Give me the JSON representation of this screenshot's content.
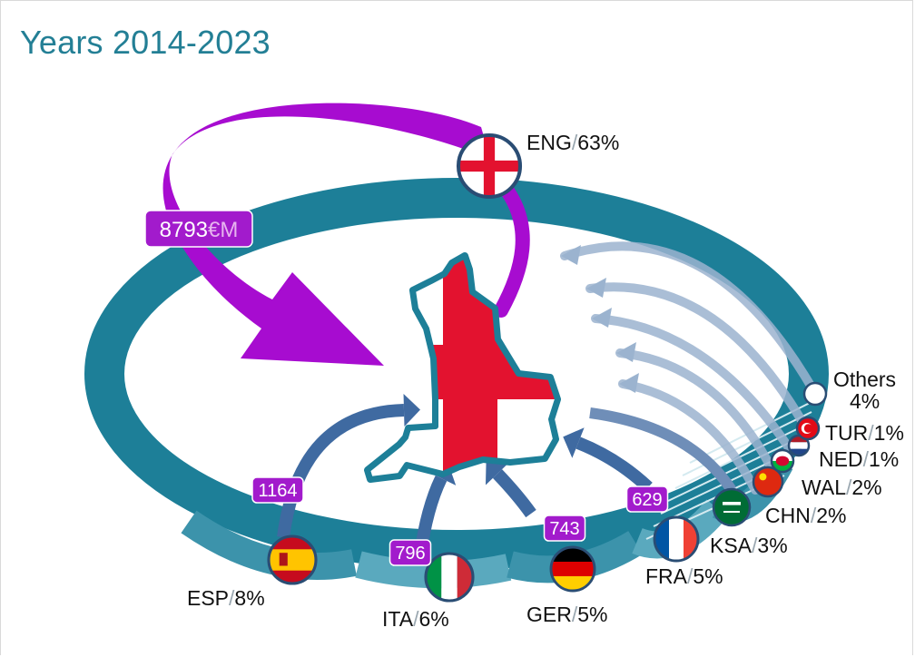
{
  "title": "Years 2014-2023",
  "chart_data": {
    "type": "flow",
    "destination": {
      "code": "ENG",
      "share": "63%",
      "value": 8793,
      "value_label": "8793",
      "unit": "€M"
    },
    "origins": [
      {
        "code": "ESP",
        "share": "8%",
        "value": 1164,
        "value_label": "1164"
      },
      {
        "code": "ITA",
        "share": "6%",
        "value": 796,
        "value_label": "796"
      },
      {
        "code": "GER",
        "share": "5%",
        "value": 743,
        "value_label": "743"
      },
      {
        "code": "FRA",
        "share": "5%",
        "value": 629,
        "value_label": "629"
      },
      {
        "code": "KSA",
        "share": "3%"
      },
      {
        "code": "CHN",
        "share": "2%"
      },
      {
        "code": "WAL",
        "share": "2%"
      },
      {
        "code": "NED",
        "share": "1%"
      },
      {
        "code": "TUR",
        "share": "1%"
      },
      {
        "code": "Others",
        "share": "4%"
      }
    ],
    "separator": "/"
  },
  "colors": {
    "ring": "#1d7f98",
    "ring_light": "#4fa4bb",
    "flow_purple": "#a70cd0",
    "flow_blue": "#3f6aa1",
    "value_badge": "#a21bcc",
    "england_red": "#e3122f",
    "flag_border": "#2a4d74"
  }
}
